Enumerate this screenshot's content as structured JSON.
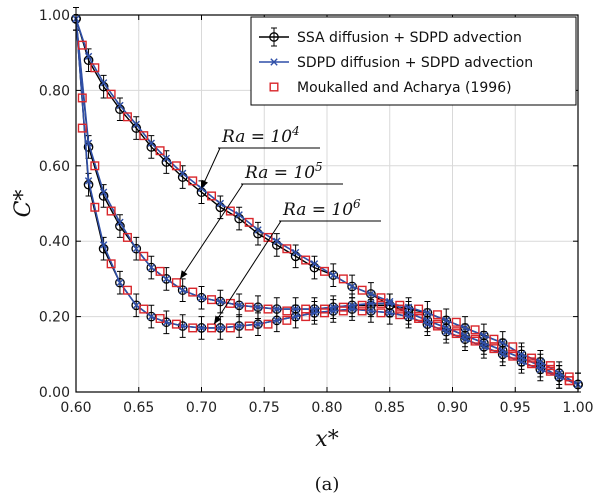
{
  "chart_data": {
    "type": "line",
    "xlabel": "x*",
    "ylabel": "C*",
    "xlim": [
      0.6,
      1.0
    ],
    "ylim": [
      0.0,
      1.0
    ],
    "xticks": [
      "0.60",
      "0.65",
      "0.70",
      "0.75",
      "0.80",
      "0.85",
      "0.90",
      "0.95",
      "1.00"
    ],
    "yticks": [
      "0.00",
      "0.20",
      "0.40",
      "0.60",
      "0.80",
      "1.00"
    ],
    "grid": true,
    "legend_position": "top-right",
    "caption": "(a)",
    "colors": {
      "ssa": "#000000",
      "sdpd": "#2f4fa8",
      "ref": "#d9262b"
    },
    "series": [
      {
        "name": "SSA diffusion + SDPD advection",
        "style": "line-circle-errorbar",
        "curves": [
          {
            "case": "Ra=10^4",
            "x": [
              0.6,
              0.61,
              0.622,
              0.635,
              0.648,
              0.66,
              0.672,
              0.685,
              0.7,
              0.715,
              0.73,
              0.745,
              0.76,
              0.775,
              0.79,
              0.805,
              0.82,
              0.835,
              0.85,
              0.865,
              0.88,
              0.895,
              0.91,
              0.925,
              0.94,
              0.955,
              0.97,
              0.985,
              1.0
            ],
            "y": [
              0.99,
              0.88,
              0.81,
              0.75,
              0.7,
              0.65,
              0.61,
              0.57,
              0.53,
              0.49,
              0.46,
              0.42,
              0.39,
              0.36,
              0.33,
              0.31,
              0.28,
              0.26,
              0.23,
              0.21,
              0.19,
              0.17,
              0.15,
              0.13,
              0.11,
              0.09,
              0.07,
              0.04,
              0.02
            ]
          },
          {
            "case": "Ra=10^5",
            "x": [
              0.6,
              0.61,
              0.622,
              0.635,
              0.648,
              0.66,
              0.672,
              0.685,
              0.7,
              0.715,
              0.73,
              0.745,
              0.76,
              0.775,
              0.79,
              0.805,
              0.82,
              0.835,
              0.85,
              0.865,
              0.88,
              0.895,
              0.91,
              0.925,
              0.94,
              0.955,
              0.97,
              0.985,
              1.0
            ],
            "y": [
              0.99,
              0.65,
              0.52,
              0.44,
              0.38,
              0.33,
              0.3,
              0.27,
              0.25,
              0.24,
              0.23,
              0.225,
              0.22,
              0.22,
              0.22,
              0.225,
              0.23,
              0.23,
              0.23,
              0.22,
              0.21,
              0.19,
              0.17,
              0.15,
              0.13,
              0.1,
              0.08,
              0.05,
              0.02
            ]
          },
          {
            "case": "Ra=10^6",
            "x": [
              0.6,
              0.61,
              0.622,
              0.635,
              0.648,
              0.66,
              0.672,
              0.685,
              0.7,
              0.715,
              0.73,
              0.745,
              0.76,
              0.775,
              0.79,
              0.805,
              0.82,
              0.835,
              0.85,
              0.865,
              0.88,
              0.895,
              0.91,
              0.925,
              0.94,
              0.955,
              0.97,
              0.985,
              1.0
            ],
            "y": [
              0.99,
              0.55,
              0.38,
              0.29,
              0.23,
              0.2,
              0.185,
              0.175,
              0.17,
              0.17,
              0.175,
              0.18,
              0.19,
              0.2,
              0.21,
              0.215,
              0.22,
              0.215,
              0.21,
              0.2,
              0.18,
              0.16,
              0.14,
              0.12,
              0.1,
              0.08,
              0.06,
              0.04,
              0.02
            ]
          }
        ],
        "error": 0.03
      },
      {
        "name": "SDPD diffusion + SDPD advection",
        "style": "line-x",
        "curves": [
          {
            "case": "Ra=10^4",
            "x": [
              0.6,
              0.61,
              0.622,
              0.635,
              0.648,
              0.66,
              0.672,
              0.685,
              0.7,
              0.715,
              0.73,
              0.745,
              0.76,
              0.775,
              0.79,
              0.805,
              0.82,
              0.835,
              0.85,
              0.865,
              0.88,
              0.895,
              0.91,
              0.925,
              0.94,
              0.955,
              0.97,
              0.985,
              1.0
            ],
            "y": [
              0.99,
              0.89,
              0.82,
              0.76,
              0.71,
              0.66,
              0.62,
              0.58,
              0.54,
              0.5,
              0.47,
              0.43,
              0.4,
              0.37,
              0.34,
              0.31,
              0.28,
              0.26,
              0.24,
              0.21,
              0.19,
              0.17,
              0.15,
              0.13,
              0.11,
              0.09,
              0.07,
              0.04,
              0.02
            ]
          },
          {
            "case": "Ra=10^5",
            "x": [
              0.6,
              0.61,
              0.622,
              0.635,
              0.648,
              0.66,
              0.672,
              0.685,
              0.7,
              0.715,
              0.73,
              0.745,
              0.76,
              0.775,
              0.79,
              0.805,
              0.82,
              0.835,
              0.85,
              0.865,
              0.88,
              0.895,
              0.91,
              0.925,
              0.94,
              0.955,
              0.97,
              0.985,
              1.0
            ],
            "y": [
              0.99,
              0.66,
              0.53,
              0.45,
              0.38,
              0.33,
              0.3,
              0.27,
              0.25,
              0.24,
              0.23,
              0.225,
              0.22,
              0.22,
              0.22,
              0.225,
              0.23,
              0.235,
              0.235,
              0.225,
              0.21,
              0.19,
              0.17,
              0.15,
              0.13,
              0.1,
              0.08,
              0.05,
              0.02
            ]
          },
          {
            "case": "Ra=10^6",
            "x": [
              0.6,
              0.61,
              0.622,
              0.635,
              0.648,
              0.66,
              0.672,
              0.685,
              0.7,
              0.715,
              0.73,
              0.745,
              0.76,
              0.775,
              0.79,
              0.805,
              0.82,
              0.835,
              0.85,
              0.865,
              0.88,
              0.895,
              0.91,
              0.925,
              0.94,
              0.955,
              0.97,
              0.985,
              1.0
            ],
            "y": [
              0.99,
              0.56,
              0.39,
              0.29,
              0.23,
              0.2,
              0.185,
              0.175,
              0.17,
              0.17,
              0.175,
              0.18,
              0.19,
              0.2,
              0.21,
              0.215,
              0.22,
              0.215,
              0.21,
              0.2,
              0.18,
              0.16,
              0.14,
              0.12,
              0.1,
              0.08,
              0.06,
              0.04,
              0.02
            ]
          }
        ]
      },
      {
        "name": "Moukalled and Acharya (1996)",
        "style": "square",
        "curves": [
          {
            "case": "Ra=10^4",
            "x": [
              0.605,
              0.615,
              0.628,
              0.641,
              0.654,
              0.667,
              0.68,
              0.693,
              0.708,
              0.723,
              0.738,
              0.753,
              0.768,
              0.783,
              0.798,
              0.813,
              0.828,
              0.843,
              0.858,
              0.873,
              0.888,
              0.903,
              0.918,
              0.933,
              0.948,
              0.963,
              0.978,
              0.993
            ],
            "y": [
              0.92,
              0.86,
              0.79,
              0.73,
              0.68,
              0.64,
              0.6,
              0.56,
              0.52,
              0.48,
              0.45,
              0.41,
              0.38,
              0.35,
              0.32,
              0.3,
              0.27,
              0.25,
              0.22,
              0.2,
              0.18,
              0.16,
              0.14,
              0.12,
              0.1,
              0.08,
              0.06,
              0.03
            ]
          },
          {
            "case": "Ra=10^5",
            "x": [
              0.605,
              0.615,
              0.628,
              0.641,
              0.654,
              0.667,
              0.68,
              0.693,
              0.708,
              0.723,
              0.738,
              0.753,
              0.768,
              0.783,
              0.798,
              0.813,
              0.828,
              0.843,
              0.858,
              0.873,
              0.888,
              0.903,
              0.918,
              0.933,
              0.948,
              0.963,
              0.978,
              0.993
            ],
            "y": [
              0.78,
              0.6,
              0.48,
              0.41,
              0.36,
              0.32,
              0.29,
              0.265,
              0.245,
              0.235,
              0.225,
              0.22,
              0.215,
              0.22,
              0.22,
              0.225,
              0.23,
              0.235,
              0.23,
              0.22,
              0.205,
              0.185,
              0.165,
              0.14,
              0.12,
              0.09,
              0.07,
              0.04
            ]
          },
          {
            "case": "Ra=10^6",
            "x": [
              0.605,
              0.615,
              0.628,
              0.641,
              0.654,
              0.667,
              0.68,
              0.693,
              0.708,
              0.723,
              0.738,
              0.753,
              0.768,
              0.783,
              0.798,
              0.813,
              0.828,
              0.843,
              0.858,
              0.873,
              0.888,
              0.903,
              0.918,
              0.933,
              0.948,
              0.963,
              0.978,
              0.993
            ],
            "y": [
              0.7,
              0.49,
              0.34,
              0.27,
              0.22,
              0.195,
              0.18,
              0.17,
              0.17,
              0.17,
              0.175,
              0.18,
              0.19,
              0.2,
              0.21,
              0.215,
              0.215,
              0.21,
              0.205,
              0.195,
              0.175,
              0.155,
              0.135,
              0.115,
              0.095,
              0.075,
              0.055,
              0.03
            ]
          }
        ]
      }
    ],
    "annotations": [
      {
        "base": "Ra = 10",
        "exp": "4",
        "target": [
          0.7,
          0.54
        ]
      },
      {
        "base": "Ra = 10",
        "exp": "5",
        "target": [
          0.683,
          0.3
        ]
      },
      {
        "base": "Ra = 10",
        "exp": "6",
        "target": [
          0.71,
          0.18
        ]
      }
    ]
  }
}
